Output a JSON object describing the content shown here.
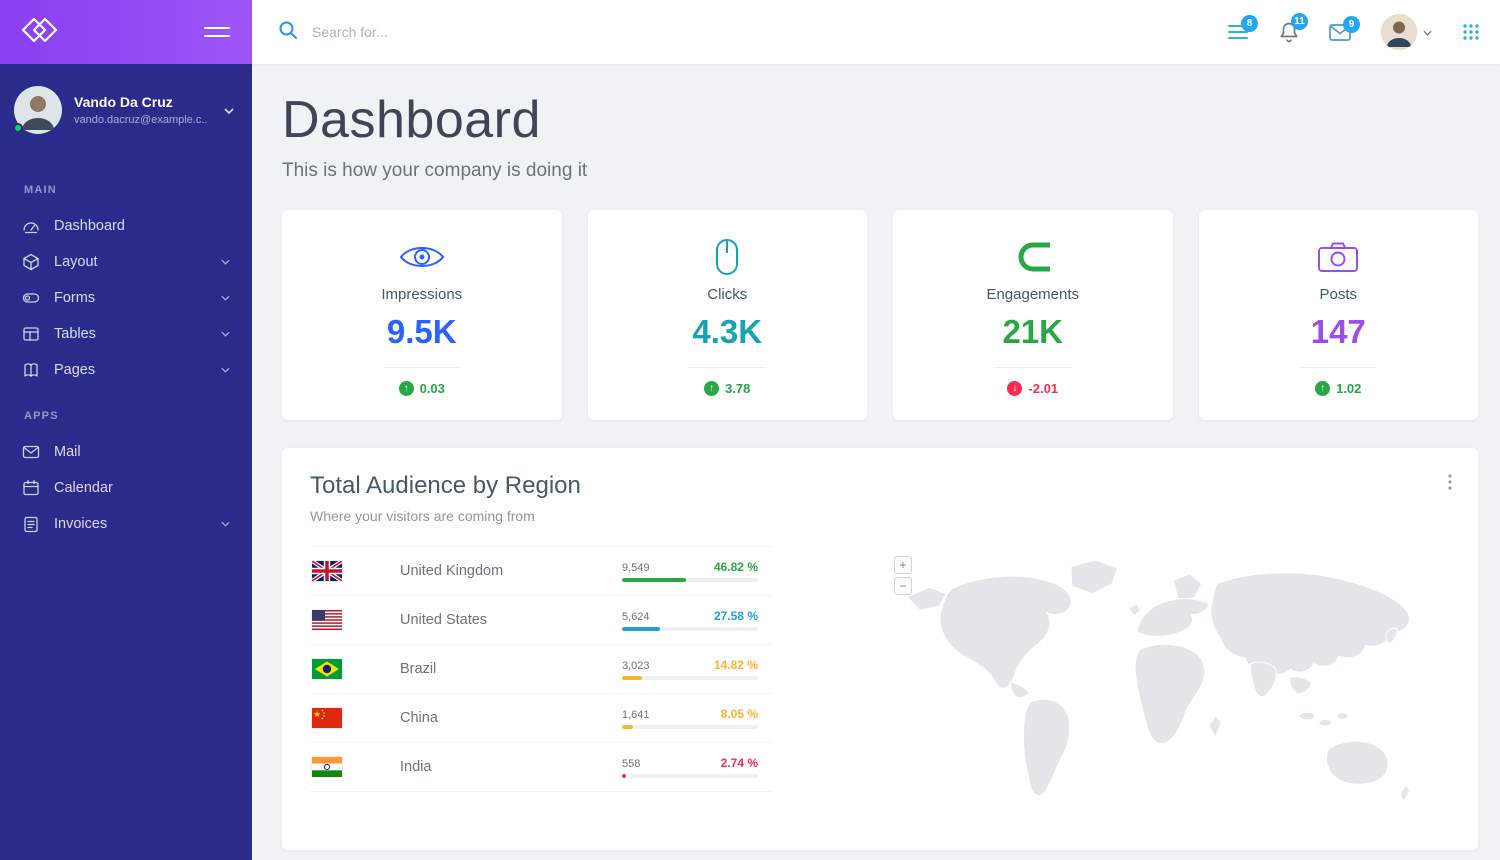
{
  "sidebar": {
    "user": {
      "name": "Vando Da Cruz",
      "email": "vando.dacruz@example.c..."
    },
    "sections": [
      {
        "label": "MAIN",
        "items": [
          {
            "label": "Dashboard",
            "icon": "dashboard-icon",
            "expandable": false
          },
          {
            "label": "Layout",
            "icon": "layout-icon",
            "expandable": true
          },
          {
            "label": "Forms",
            "icon": "forms-icon",
            "expandable": true
          },
          {
            "label": "Tables",
            "icon": "tables-icon",
            "expandable": true
          },
          {
            "label": "Pages",
            "icon": "pages-icon",
            "expandable": true
          }
        ]
      },
      {
        "label": "APPS",
        "items": [
          {
            "label": "Mail",
            "icon": "mail-icon",
            "expandable": false
          },
          {
            "label": "Calendar",
            "icon": "calendar-icon",
            "expandable": false
          },
          {
            "label": "Invoices",
            "icon": "invoices-icon",
            "expandable": true
          }
        ]
      }
    ]
  },
  "topbar": {
    "search_placeholder": "Search for...",
    "list_badge": "8",
    "bell_badge": "11",
    "mail_badge": "9"
  },
  "page": {
    "title": "Dashboard",
    "subtitle": "This is how your company is doing it"
  },
  "stats": [
    {
      "label": "Impressions",
      "value": "9.5K",
      "delta": "0.03",
      "direction": "up",
      "color": "#2962ff",
      "icon": "eye-icon"
    },
    {
      "label": "Clicks",
      "value": "4.3K",
      "delta": "3.78",
      "direction": "up",
      "color": "#17a2b8",
      "icon": "mouse-icon"
    },
    {
      "label": "Engagements",
      "value": "21K",
      "delta": "-2.01",
      "direction": "down",
      "color": "#28a745",
      "icon": "magnet-icon"
    },
    {
      "label": "Posts",
      "value": "147",
      "delta": "1.02",
      "direction": "up",
      "color": "#9b4df0",
      "icon": "camera-icon"
    }
  ],
  "colors": {
    "up": "#28a745",
    "down": "#f62d51"
  },
  "region_card": {
    "title": "Total Audience by Region",
    "subtitle": "Where your visitors are coming from",
    "map_zoom_in": "+",
    "map_zoom_out": "−",
    "rows": [
      {
        "country": "United Kingdom",
        "value": "9,549",
        "percent": "46.82 %",
        "pct": 46.82,
        "color": "#28a745",
        "flag": "flag-united-kingdom-icon"
      },
      {
        "country": "United States",
        "value": "5,624",
        "percent": "27.58 %",
        "pct": 27.58,
        "color": "#1e9fd8",
        "flag": "flag-united-states-icon"
      },
      {
        "country": "Brazil",
        "value": "3,023",
        "percent": "14.82 %",
        "pct": 14.82,
        "color": "#ffb22b",
        "flag": "flag-brazil-icon"
      },
      {
        "country": "China",
        "value": "1,641",
        "percent": "8.05 %",
        "pct": 8.05,
        "color": "#ffb22b",
        "flag": "flag-china-icon"
      },
      {
        "country": "India",
        "value": "558",
        "percent": "2.74 %",
        "pct": 2.74,
        "color": "#f62d51",
        "flag": "flag-india-icon"
      }
    ]
  }
}
